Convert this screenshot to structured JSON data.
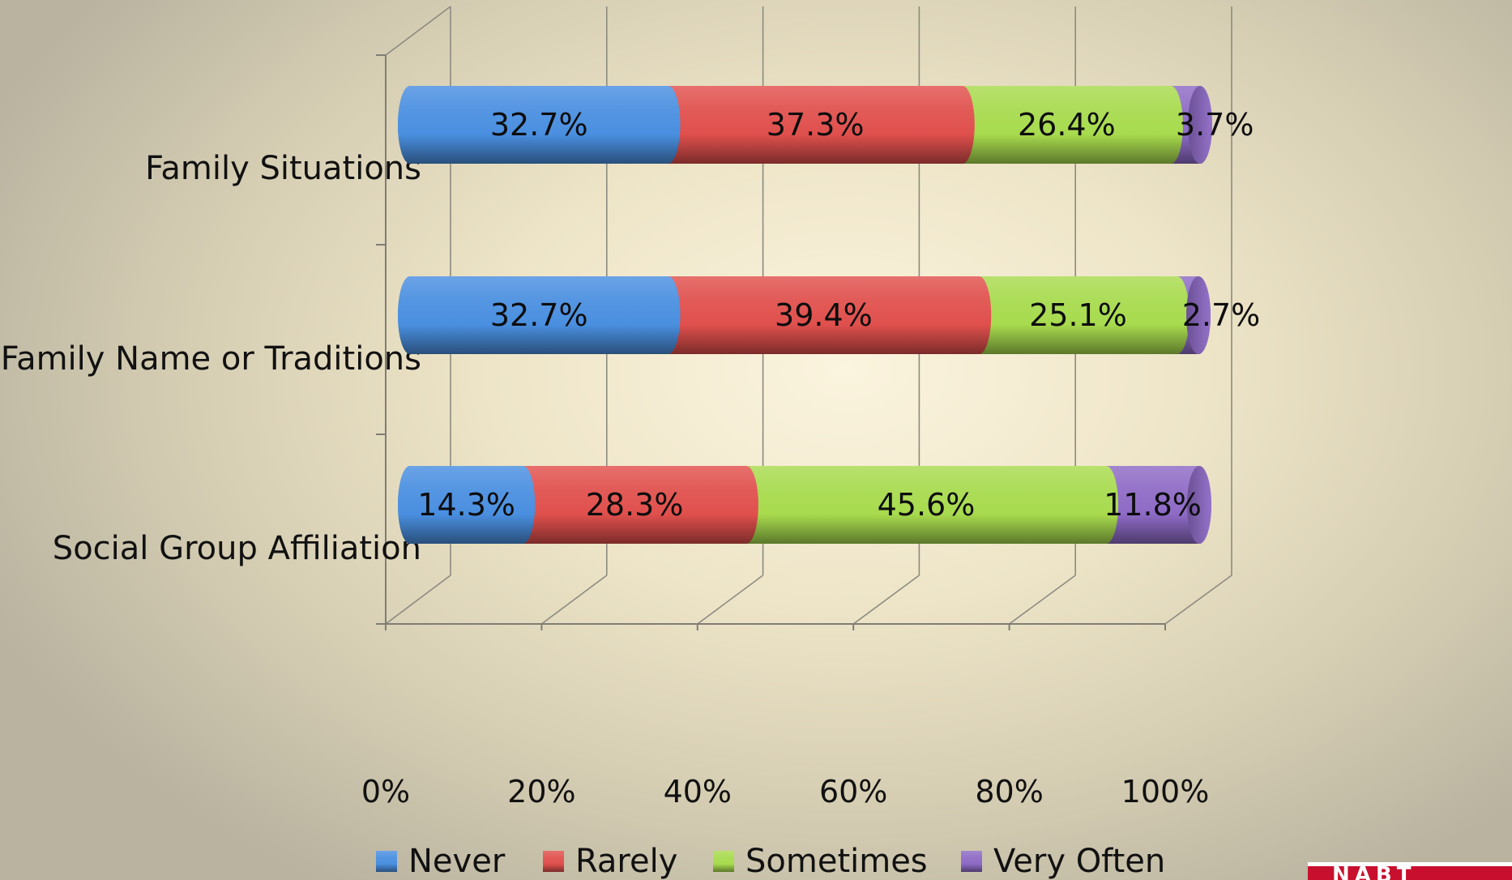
{
  "chart_data": {
    "type": "bar",
    "orientation": "horizontal",
    "stacked": "percent",
    "style": "3d-cylinder",
    "categories": [
      "Family Situations",
      "Family Name or Traditions",
      "Social Group Affiliation"
    ],
    "series": [
      {
        "name": "Never",
        "color": "#4a8fe0",
        "values": [
          32.7,
          32.7,
          14.3
        ],
        "labels": [
          "32.7%",
          "32.7%",
          "14.3%"
        ]
      },
      {
        "name": "Rarely",
        "color": "#e0504d",
        "values": [
          37.3,
          39.4,
          28.3
        ],
        "labels": [
          "37.3%",
          "39.4%",
          "28.3%"
        ]
      },
      {
        "name": "Sometimes",
        "color": "#a8db4e",
        "values": [
          26.4,
          25.1,
          45.6
        ],
        "labels": [
          "26.4%",
          "25.1%",
          "45.6%"
        ]
      },
      {
        "name": "Very Often",
        "color": "#8e6bc6",
        "values": [
          3.7,
          2.7,
          11.8
        ],
        "labels": [
          "3.7%",
          "2.7%",
          "11.8%"
        ]
      }
    ],
    "x_ticks": [
      "0%",
      "20%",
      "40%",
      "60%",
      "80%",
      "100%"
    ],
    "xlim": [
      0,
      100
    ],
    "grid": true,
    "legend_position": "bottom",
    "title": "",
    "xlabel": "",
    "ylabel": ""
  },
  "logo": {
    "text": "NABT"
  }
}
